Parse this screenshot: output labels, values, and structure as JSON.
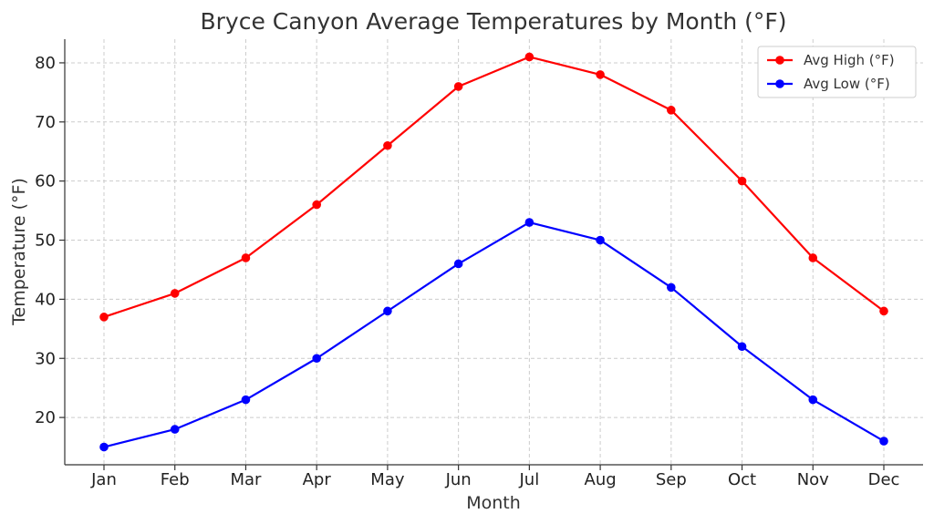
{
  "chart_data": {
    "type": "line",
    "title": "Bryce Canyon Average Temperatures by Month (°F)",
    "xlabel": "Month",
    "ylabel": "Temperature (°F)",
    "categories": [
      "Jan",
      "Feb",
      "Mar",
      "Apr",
      "May",
      "Jun",
      "Jul",
      "Aug",
      "Sep",
      "Oct",
      "Nov",
      "Dec"
    ],
    "series": [
      {
        "name": "Avg High (°F)",
        "color": "#ff0000",
        "values": [
          37,
          41,
          47,
          56,
          66,
          76,
          81,
          78,
          72,
          60,
          47,
          38
        ]
      },
      {
        "name": "Avg Low (°F)",
        "color": "#0000ff",
        "values": [
          15,
          18,
          23,
          30,
          38,
          46,
          53,
          50,
          42,
          32,
          23,
          16
        ]
      }
    ],
    "ylim": [
      12,
      84
    ],
    "yticks": [
      20,
      30,
      40,
      50,
      60,
      70,
      80
    ],
    "grid": true,
    "legend_position": "top-right"
  }
}
